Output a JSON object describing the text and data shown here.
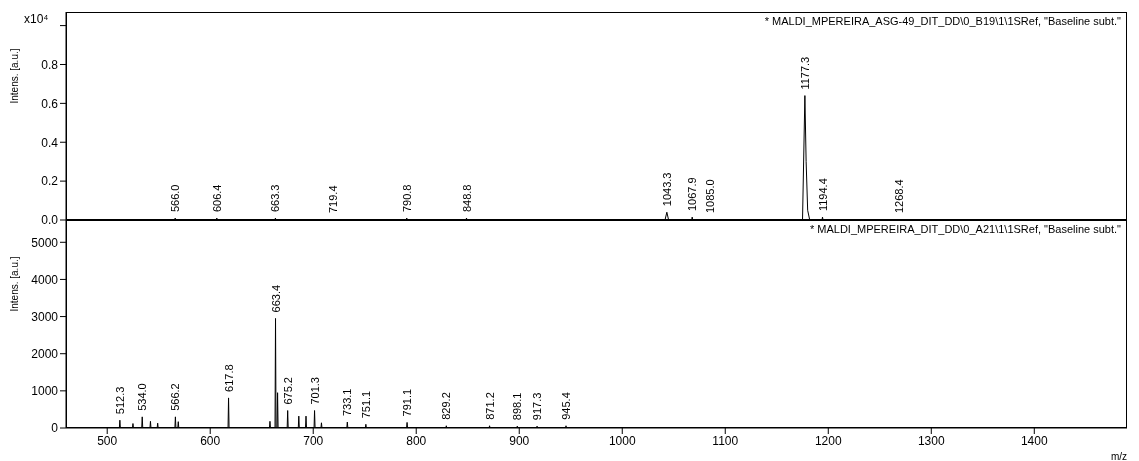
{
  "chart_data": [
    {
      "type": "line",
      "title": "* MALDI_MPEREIRA_ASG-49_DIT_DD\\0_B19\\1\\1SRef, \"Baseline subt.\"",
      "ylabel": "Intens. [a.u.]",
      "xlim": [
        460,
        1490
      ],
      "ylim": [
        0,
        1.07
      ],
      "yticks": [
        {
          "value": 0,
          "label": "0.0"
        },
        0.2,
        0.4,
        0.6,
        0.8,
        {
          "value": 1.0,
          "label": null
        }
      ],
      "tick_labels": "y",
      "grid": false,
      "marker": "none",
      "series": [
        {
          "color": "#000000",
          "x": [
            460,
            565.5,
            566.0,
            566.5,
            605.9,
            606.4,
            606.9,
            662.8,
            663.3,
            663.8,
            718.9,
            719.4,
            719.9,
            790.3,
            790.8,
            791.3,
            848.3,
            848.8,
            849.3,
            1041.5,
            1043.3,
            1045,
            1067.4,
            1067.9,
            1068.4,
            1084.5,
            1085.0,
            1085.5,
            1175,
            1177.3,
            1178.5,
            1180,
            1182,
            1193.9,
            1194.4,
            1194.9,
            1267.9,
            1268.4,
            1268.9,
            1490
          ],
          "values": [
            0,
            0,
            0.01,
            0,
            0,
            0.01,
            0,
            0,
            0.01,
            0,
            0,
            0.005,
            0,
            0,
            0.01,
            0,
            0,
            0.01,
            0,
            0,
            0.04,
            0,
            0,
            0.015,
            0,
            0,
            0.005,
            0,
            0,
            0.64,
            0.3,
            0.05,
            0,
            0,
            0.015,
            0,
            0,
            0.005,
            0,
            0
          ]
        }
      ],
      "annotations": [
        "x10⁴",
        {
          "text": "566.0",
          "x": 566.0,
          "y": 0.01
        },
        {
          "text": "606.4",
          "x": 606.4,
          "y": 0.01
        },
        {
          "text": "663.3",
          "x": 663.3,
          "y": 0.01
        },
        {
          "text": "719.4",
          "x": 719.4,
          "y": 0.005
        },
        {
          "text": "790.8",
          "x": 790.8,
          "y": 0.01
        },
        {
          "text": "848.8",
          "x": 848.8,
          "y": 0.01
        },
        {
          "text": "1043.3",
          "x": 1043.3,
          "y": 0.04
        },
        {
          "text": "1067.9",
          "x": 1067.9,
          "y": 0.015
        },
        {
          "text": "1085.0",
          "x": 1085.0,
          "y": 0.005
        },
        {
          "text": "1177.3",
          "x": 1177.3,
          "y": 0.64
        },
        {
          "text": "1194.4",
          "x": 1194.4,
          "y": 0.015
        },
        {
          "text": "1268.4",
          "x": 1268.4,
          "y": 0.005
        }
      ]
    },
    {
      "type": "line",
      "title": "* MALDI_MPEREIRA_DIT_DD\\0_A21\\1\\1SRef, \"Baseline subt.\"",
      "xlabel": "m/z",
      "ylabel": "Intens. [a.u.]",
      "xlim": [
        460,
        1490
      ],
      "xticks": [
        500,
        600,
        700,
        800,
        900,
        1000,
        1100,
        1200,
        1300,
        1400
      ],
      "ylim": [
        0,
        5600
      ],
      "yticks": [
        0,
        1000,
        2000,
        3000,
        4000,
        5000
      ],
      "grid": false,
      "marker": "none",
      "series": [
        {
          "color": "#000000",
          "x": [
            460,
            511.8,
            512.3,
            512.8,
            524.5,
            525,
            525.5,
            533.5,
            534.0,
            534.5,
            541.5,
            542,
            542.5,
            548.5,
            549,
            549.5,
            565.7,
            566.2,
            566.7,
            568.5,
            569,
            569.5,
            617.3,
            617.8,
            618.3,
            657.5,
            658,
            658.5,
            662.9,
            663.4,
            663.9,
            664.9,
            665.4,
            665.9,
            674.7,
            675.2,
            675.7,
            685.5,
            686,
            686.5,
            692.5,
            693,
            693.5,
            700.8,
            701.3,
            701.8,
            707.5,
            708,
            708.5,
            732.6,
            733.1,
            733.6,
            750.6,
            751.1,
            751.6,
            790.6,
            791.1,
            791.6,
            828.7,
            829.2,
            829.7,
            870.7,
            871.2,
            871.7,
            897.6,
            898.1,
            898.6,
            916.8,
            917.3,
            917.8,
            944.9,
            945.4,
            945.9,
            1490
          ],
          "values": [
            0,
            0,
            210,
            0,
            0,
            120,
            0,
            0,
            300,
            0,
            0,
            180,
            0,
            0,
            130,
            0,
            0,
            300,
            0,
            0,
            170,
            0,
            0,
            810,
            0,
            0,
            180,
            0,
            0,
            2950,
            0,
            0,
            950,
            0,
            0,
            470,
            0,
            0,
            320,
            0,
            0,
            320,
            0,
            0,
            470,
            0,
            0,
            140,
            0,
            0,
            160,
            0,
            0,
            100,
            0,
            0,
            150,
            0,
            0,
            60,
            0,
            0,
            60,
            0,
            0,
            50,
            0,
            0,
            50,
            0,
            0,
            60,
            0,
            0
          ]
        }
      ],
      "annotations": [
        {
          "text": "512.3",
          "x": 512.3,
          "y": 210
        },
        {
          "text": "534.0",
          "x": 534.0,
          "y": 300
        },
        {
          "text": "566.2",
          "x": 566.2,
          "y": 300
        },
        {
          "text": "617.8",
          "x": 617.8,
          "y": 810
        },
        {
          "text": "663.4",
          "x": 663.4,
          "y": 2950
        },
        {
          "text": "675.2",
          "x": 675.2,
          "y": 470
        },
        {
          "text": "701.3",
          "x": 701.3,
          "y": 470
        },
        {
          "text": "733.1",
          "x": 733.1,
          "y": 160
        },
        {
          "text": "751.1",
          "x": 751.1,
          "y": 100
        },
        {
          "text": "791.1",
          "x": 791.1,
          "y": 150
        },
        {
          "text": "829.2",
          "x": 829.2,
          "y": 60
        },
        {
          "text": "871.2",
          "x": 871.2,
          "y": 60
        },
        {
          "text": "898.1",
          "x": 898.1,
          "y": 50
        },
        {
          "text": "917.3",
          "x": 917.3,
          "y": 50
        },
        {
          "text": "945.4",
          "x": 945.4,
          "y": 60
        }
      ]
    }
  ]
}
